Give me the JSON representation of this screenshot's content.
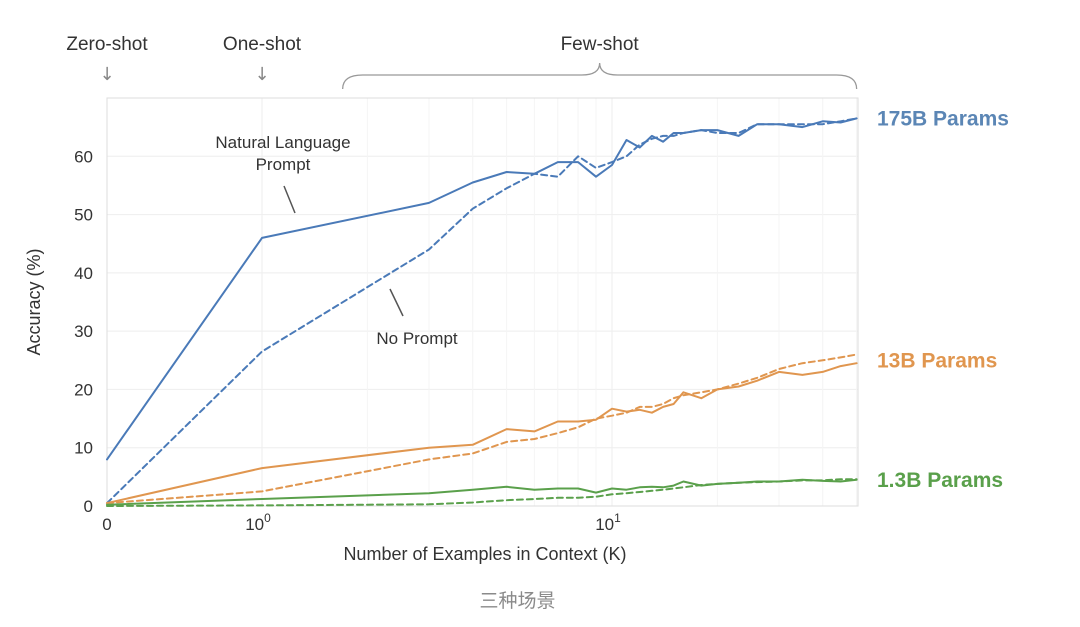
{
  "chart_data": {
    "type": "line",
    "xlabel": "Number of Examples in Context  (K)",
    "ylabel": "Accuracy (%)",
    "ylim": [
      0,
      70
    ],
    "yticks": [
      0,
      10,
      20,
      30,
      40,
      50,
      60
    ],
    "xscale": "symlog",
    "xlim": [
      0,
      50
    ],
    "xticks": [
      {
        "value": 0,
        "base": "0",
        "exp": ""
      },
      {
        "value": 1,
        "base": "10",
        "exp": "0"
      },
      {
        "value": 10,
        "base": "10",
        "exp": "1"
      }
    ],
    "grid": true,
    "regimes": [
      {
        "label": "Zero-shot",
        "x": 0,
        "marker": "↓"
      },
      {
        "label": "One-shot",
        "x": 1,
        "marker": "↓"
      },
      {
        "label": "Few-shot",
        "x_range": [
          1.7,
          50
        ],
        "marker": "brace"
      }
    ],
    "annotations": [
      {
        "text_lines": [
          "Natural Language",
          "Prompt"
        ]
      },
      {
        "text_lines": [
          "No Prompt"
        ]
      }
    ],
    "series": [
      {
        "name": "175B Params",
        "color": "#4a7ab8",
        "style": "solid",
        "x": [
          0,
          1,
          3,
          4,
          5,
          6,
          7,
          8,
          9,
          10,
          11,
          12,
          13,
          14,
          15,
          16,
          18,
          20,
          23,
          26,
          30,
          35,
          40,
          45,
          50
        ],
        "values": [
          8,
          46,
          52,
          55.5,
          57.3,
          57,
          59,
          59,
          56.5,
          58.5,
          62.8,
          61.5,
          63.5,
          62.5,
          64,
          64,
          64.5,
          64.5,
          63.5,
          65.5,
          65.5,
          65,
          66,
          65.8,
          66.5
        ]
      },
      {
        "name": "175B Params",
        "color": "#4a7ab8",
        "style": "dashed",
        "x": [
          0,
          1,
          3,
          4,
          5,
          6,
          7,
          8,
          9,
          10,
          11,
          12,
          13,
          14,
          15,
          16,
          18,
          20,
          23,
          26,
          30,
          35,
          40,
          45,
          50
        ],
        "values": [
          0.5,
          26.5,
          44,
          51,
          54.5,
          57,
          56.5,
          60,
          58,
          59,
          60,
          62,
          63,
          63.5,
          63.5,
          64,
          64.5,
          64,
          64,
          65.5,
          65.5,
          65.5,
          65.5,
          66,
          66.5
        ]
      },
      {
        "name": "13B Params",
        "color": "#e0964f",
        "style": "solid",
        "x": [
          0,
          1,
          3,
          4,
          5,
          6,
          7,
          8,
          9,
          10,
          11,
          12,
          13,
          14,
          15,
          16,
          18,
          20,
          23,
          26,
          30,
          35,
          40,
          45,
          50
        ],
        "values": [
          0.5,
          6.5,
          10,
          10.5,
          13.2,
          12.8,
          14.5,
          14.5,
          14.8,
          16.7,
          16.2,
          16.5,
          16,
          17,
          17.5,
          19.5,
          18.5,
          20,
          20.5,
          21.5,
          23,
          22.5,
          23,
          24,
          24.5
        ]
      },
      {
        "name": "13B Params",
        "color": "#e0964f",
        "style": "dashed",
        "x": [
          0,
          1,
          3,
          4,
          5,
          6,
          7,
          8,
          9,
          10,
          11,
          12,
          13,
          14,
          15,
          16,
          18,
          20,
          23,
          26,
          30,
          35,
          40,
          45,
          50
        ],
        "values": [
          0.5,
          2.5,
          8,
          9,
          11,
          11.5,
          12.5,
          13.5,
          15,
          15.5,
          16,
          17,
          17,
          17.5,
          18.5,
          19,
          19.5,
          20,
          21,
          22,
          23.5,
          24.5,
          25,
          25.5,
          26
        ]
      },
      {
        "name": "1.3B Params",
        "color": "#5aa04b",
        "style": "solid",
        "x": [
          0,
          1,
          3,
          4,
          5,
          6,
          7,
          8,
          9,
          10,
          11,
          12,
          13,
          14,
          15,
          16,
          18,
          20,
          23,
          26,
          30,
          35,
          40,
          45,
          50
        ],
        "values": [
          0.2,
          1.2,
          2.2,
          2.8,
          3.3,
          2.8,
          3,
          3,
          2.3,
          3,
          2.8,
          3.2,
          3.3,
          3.2,
          3.5,
          4.2,
          3.5,
          3.8,
          4,
          4.2,
          4.2,
          4.5,
          4.3,
          4.2,
          4.5
        ]
      },
      {
        "name": "1.3B Params",
        "color": "#5aa04b",
        "style": "dashed",
        "x": [
          0,
          1,
          3,
          4,
          5,
          6,
          7,
          8,
          9,
          10,
          11,
          12,
          13,
          14,
          15,
          16,
          18,
          20,
          23,
          26,
          30,
          35,
          40,
          45,
          50
        ],
        "values": [
          0,
          0.1,
          0.3,
          0.6,
          1,
          1.2,
          1.4,
          1.4,
          1.6,
          2,
          2.2,
          2.4,
          2.6,
          2.8,
          3,
          3.2,
          3.6,
          3.8,
          4,
          4.1,
          4.2,
          4.4,
          4.4,
          4.6,
          4.6
        ]
      }
    ],
    "series_labels": [
      {
        "text": "175B Params",
        "color": "#5b86b5",
        "at_value": 66.5
      },
      {
        "text": "13B Params",
        "color": "#e0964f",
        "at_value": 25
      },
      {
        "text": "1.3B Params",
        "color": "#5aa04b",
        "at_value": 4.5
      }
    ]
  },
  "caption": "三种场景"
}
